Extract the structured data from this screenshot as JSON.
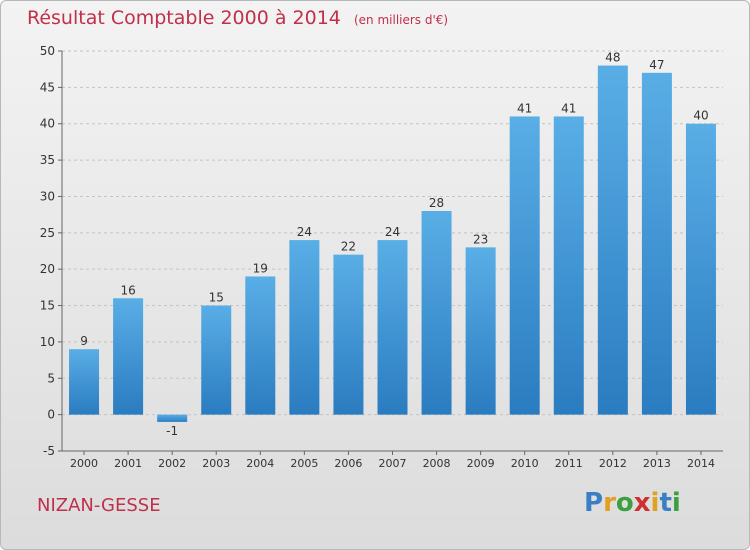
{
  "header": {
    "title": "Résultat Comptable 2000 à 2014",
    "unit_note": "(en milliers d'€)"
  },
  "footer": {
    "commune": "NIZAN-GESSE",
    "brand": "Proxiti",
    "brand_letters": [
      "P",
      "r",
      "o",
      "x",
      "i",
      "t",
      "i"
    ],
    "brand_colors": [
      "#3a7fc4",
      "#e0a020",
      "#3aa040",
      "#d03030",
      "#e0a020",
      "#3a7fc4",
      "#3aa040"
    ]
  },
  "chart_data": {
    "type": "bar",
    "title": "Résultat Comptable 2000 à 2014",
    "xlabel": "",
    "ylabel": "",
    "categories": [
      "2000",
      "2001",
      "2002",
      "2003",
      "2004",
      "2005",
      "2006",
      "2007",
      "2008",
      "2009",
      "2010",
      "2011",
      "2012",
      "2013",
      "2014"
    ],
    "values": [
      9,
      16,
      -1,
      15,
      19,
      24,
      22,
      24,
      28,
      23,
      41,
      41,
      48,
      47,
      40
    ],
    "ylim": [
      -5,
      50
    ],
    "yticks": [
      -5,
      0,
      5,
      10,
      15,
      20,
      25,
      30,
      35,
      40,
      45,
      50
    ],
    "grid": true,
    "bar_color_top": "#5aaee6",
    "bar_color_bottom": "#2a7cc0",
    "label_color": "#333333",
    "title_color": "#c0304a"
  }
}
